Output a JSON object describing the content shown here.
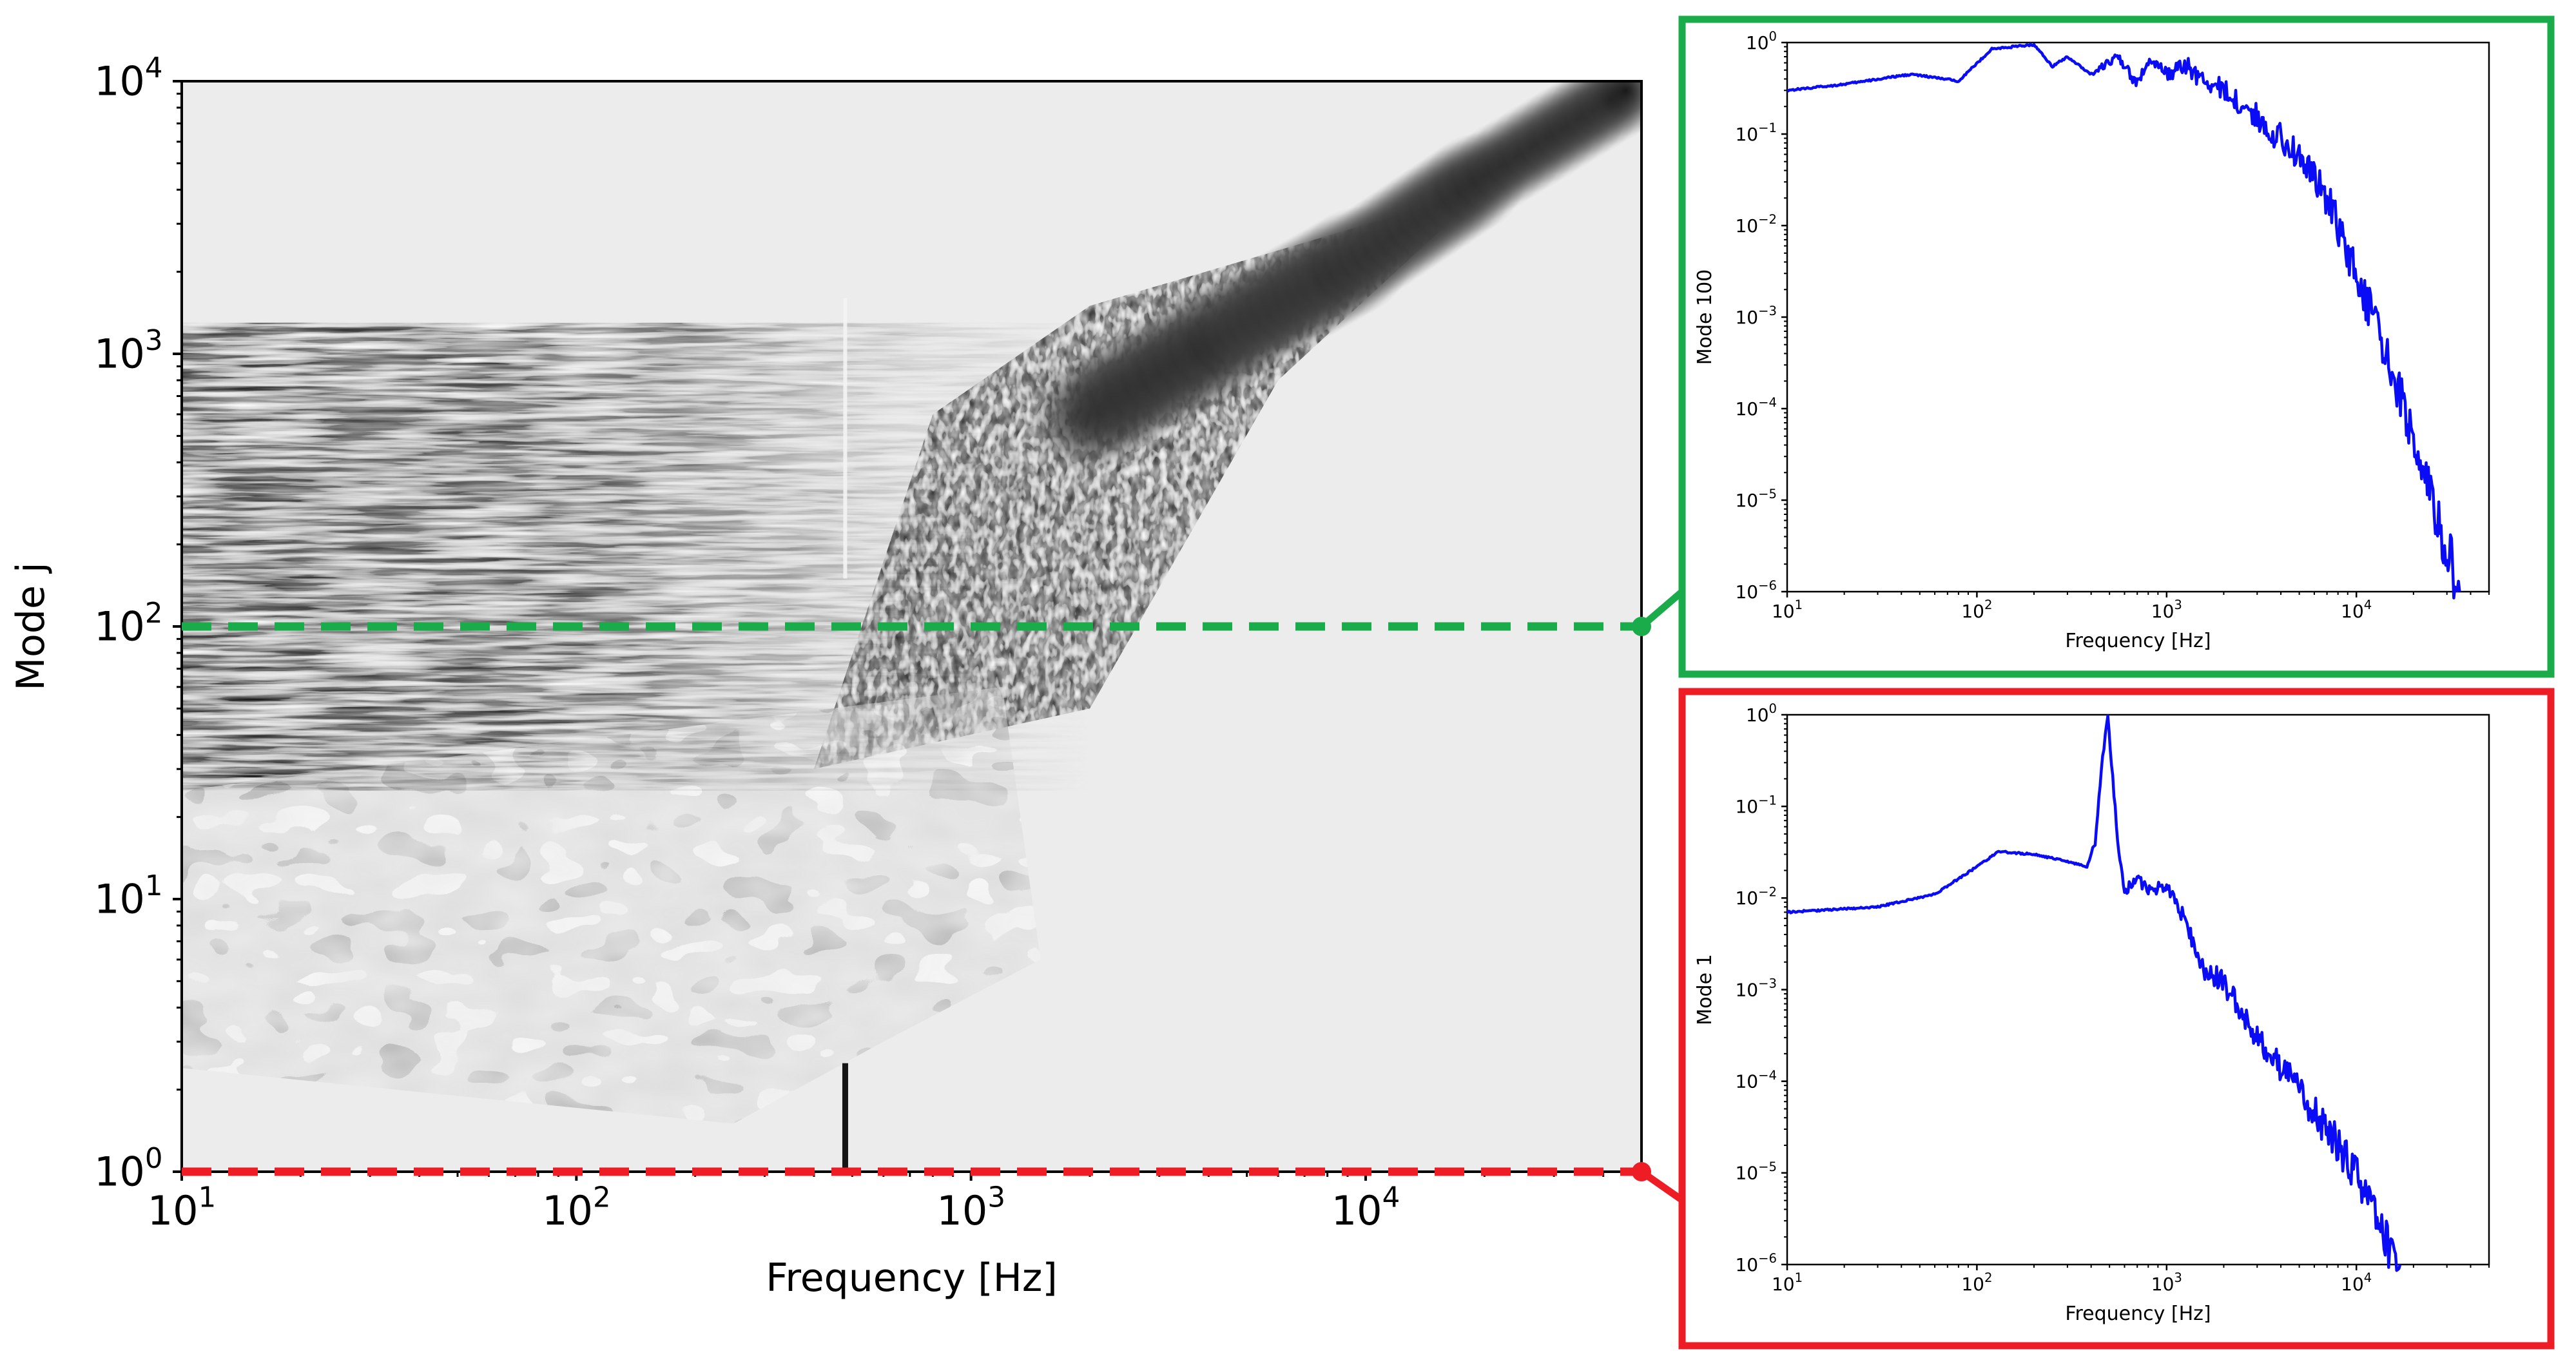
{
  "colors": {
    "green": "#1aab4b",
    "red": "#ee1c25",
    "trace": "#0a0cf5",
    "background": "#ececec",
    "ink": "#161616"
  },
  "chart_data": [
    {
      "id": "main",
      "type": "heatmap",
      "xlabel": "Frequency [Hz]",
      "ylabel": "Mode j",
      "xscale": "log",
      "yscale": "log",
      "xlim": [
        10,
        50000
      ],
      "ylim": [
        1,
        10000
      ],
      "xticks": [
        {
          "value": 10,
          "base": "10",
          "exp": "1"
        },
        {
          "value": 100,
          "base": "10",
          "exp": "2"
        },
        {
          "value": 1000,
          "base": "10",
          "exp": "3"
        },
        {
          "value": 10000,
          "base": "10",
          "exp": "4"
        }
      ],
      "yticks": [
        {
          "value": 1,
          "base": "10",
          "exp": "0"
        },
        {
          "value": 10,
          "base": "10",
          "exp": "1"
        },
        {
          "value": 100,
          "base": "10",
          "exp": "2"
        },
        {
          "value": 1000,
          "base": "10",
          "exp": "3"
        },
        {
          "value": 10000,
          "base": "10",
          "exp": "4"
        }
      ],
      "highlighted_modes": [
        {
          "mode": 100,
          "color": "green"
        },
        {
          "mode": 1,
          "color": "red"
        }
      ],
      "ridge_line": [
        [
          2000,
          600
        ],
        [
          5000,
          1300
        ],
        [
          10000,
          2300
        ],
        [
          20000,
          4500
        ],
        [
          50000,
          10000
        ]
      ],
      "bright_column_hz": 480,
      "dark_spike": {
        "x": 480,
        "y_from": 1,
        "y_to": 2.5
      }
    },
    {
      "id": "mode100",
      "type": "line",
      "xlabel": "Frequency [Hz]",
      "ylabel": "Mode 100",
      "xscale": "log",
      "yscale": "log",
      "xlim": [
        10,
        50000
      ],
      "ylim": [
        1e-06,
        1
      ],
      "xticks": [
        {
          "value": 10,
          "base": "10",
          "exp": "1"
        },
        {
          "value": 100,
          "base": "10",
          "exp": "2"
        },
        {
          "value": 1000,
          "base": "10",
          "exp": "3"
        },
        {
          "value": 10000,
          "base": "10",
          "exp": "4"
        }
      ],
      "yticks": [
        {
          "value": 1e-06,
          "base": "10",
          "exp": "−6"
        },
        {
          "value": 1e-05,
          "base": "10",
          "exp": "−5"
        },
        {
          "value": 0.0001,
          "base": "10",
          "exp": "−4"
        },
        {
          "value": 0.001,
          "base": "10",
          "exp": "−3"
        },
        {
          "value": 0.01,
          "base": "10",
          "exp": "−2"
        },
        {
          "value": 0.1,
          "base": "10",
          "exp": "−1"
        },
        {
          "value": 1,
          "base": "10",
          "exp": "0"
        }
      ],
      "x": [
        10,
        20,
        45,
        80,
        120,
        200,
        250,
        300,
        400,
        550,
        700,
        800,
        1000,
        1300,
        1500,
        2000,
        3000,
        5000,
        7000,
        10000,
        15000,
        20000,
        25000,
        30000,
        35000
      ],
      "y": [
        0.3,
        0.35,
        0.45,
        0.38,
        0.85,
        0.95,
        0.55,
        0.7,
        0.45,
        0.7,
        0.35,
        0.65,
        0.45,
        0.55,
        0.4,
        0.3,
        0.15,
        0.06,
        0.02,
        0.003,
        0.0003,
        5e-05,
        1e-05,
        3e-06,
        1e-06
      ]
    },
    {
      "id": "mode1",
      "type": "line",
      "xlabel": "Frequency [Hz]",
      "ylabel": "Mode 1",
      "xscale": "log",
      "yscale": "log",
      "xlim": [
        10,
        50000
      ],
      "ylim": [
        1e-06,
        1
      ],
      "xticks": [
        {
          "value": 10,
          "base": "10",
          "exp": "1"
        },
        {
          "value": 100,
          "base": "10",
          "exp": "2"
        },
        {
          "value": 1000,
          "base": "10",
          "exp": "3"
        },
        {
          "value": 10000,
          "base": "10",
          "exp": "4"
        }
      ],
      "yticks": [
        {
          "value": 1e-06,
          "base": "10",
          "exp": "−6"
        },
        {
          "value": 1e-05,
          "base": "10",
          "exp": "−5"
        },
        {
          "value": 0.0001,
          "base": "10",
          "exp": "−4"
        },
        {
          "value": 0.001,
          "base": "10",
          "exp": "−3"
        },
        {
          "value": 0.01,
          "base": "10",
          "exp": "−2"
        },
        {
          "value": 0.1,
          "base": "10",
          "exp": "−1"
        },
        {
          "value": 1,
          "base": "10",
          "exp": "0"
        }
      ],
      "x": [
        10,
        30,
        60,
        100,
        130,
        200,
        300,
        380,
        420,
        460,
        490,
        520,
        560,
        600,
        700,
        800,
        1000,
        1300,
        1500,
        2000,
        3000,
        5000,
        8000,
        12000,
        15000,
        17000
      ],
      "y": [
        0.007,
        0.008,
        0.011,
        0.022,
        0.032,
        0.03,
        0.025,
        0.022,
        0.04,
        0.35,
        0.95,
        0.2,
        0.03,
        0.012,
        0.016,
        0.012,
        0.014,
        0.005,
        0.0018,
        0.0012,
        0.0003,
        8e-05,
        2e-05,
        5e-06,
        1.5e-06,
        1e-06
      ]
    }
  ]
}
